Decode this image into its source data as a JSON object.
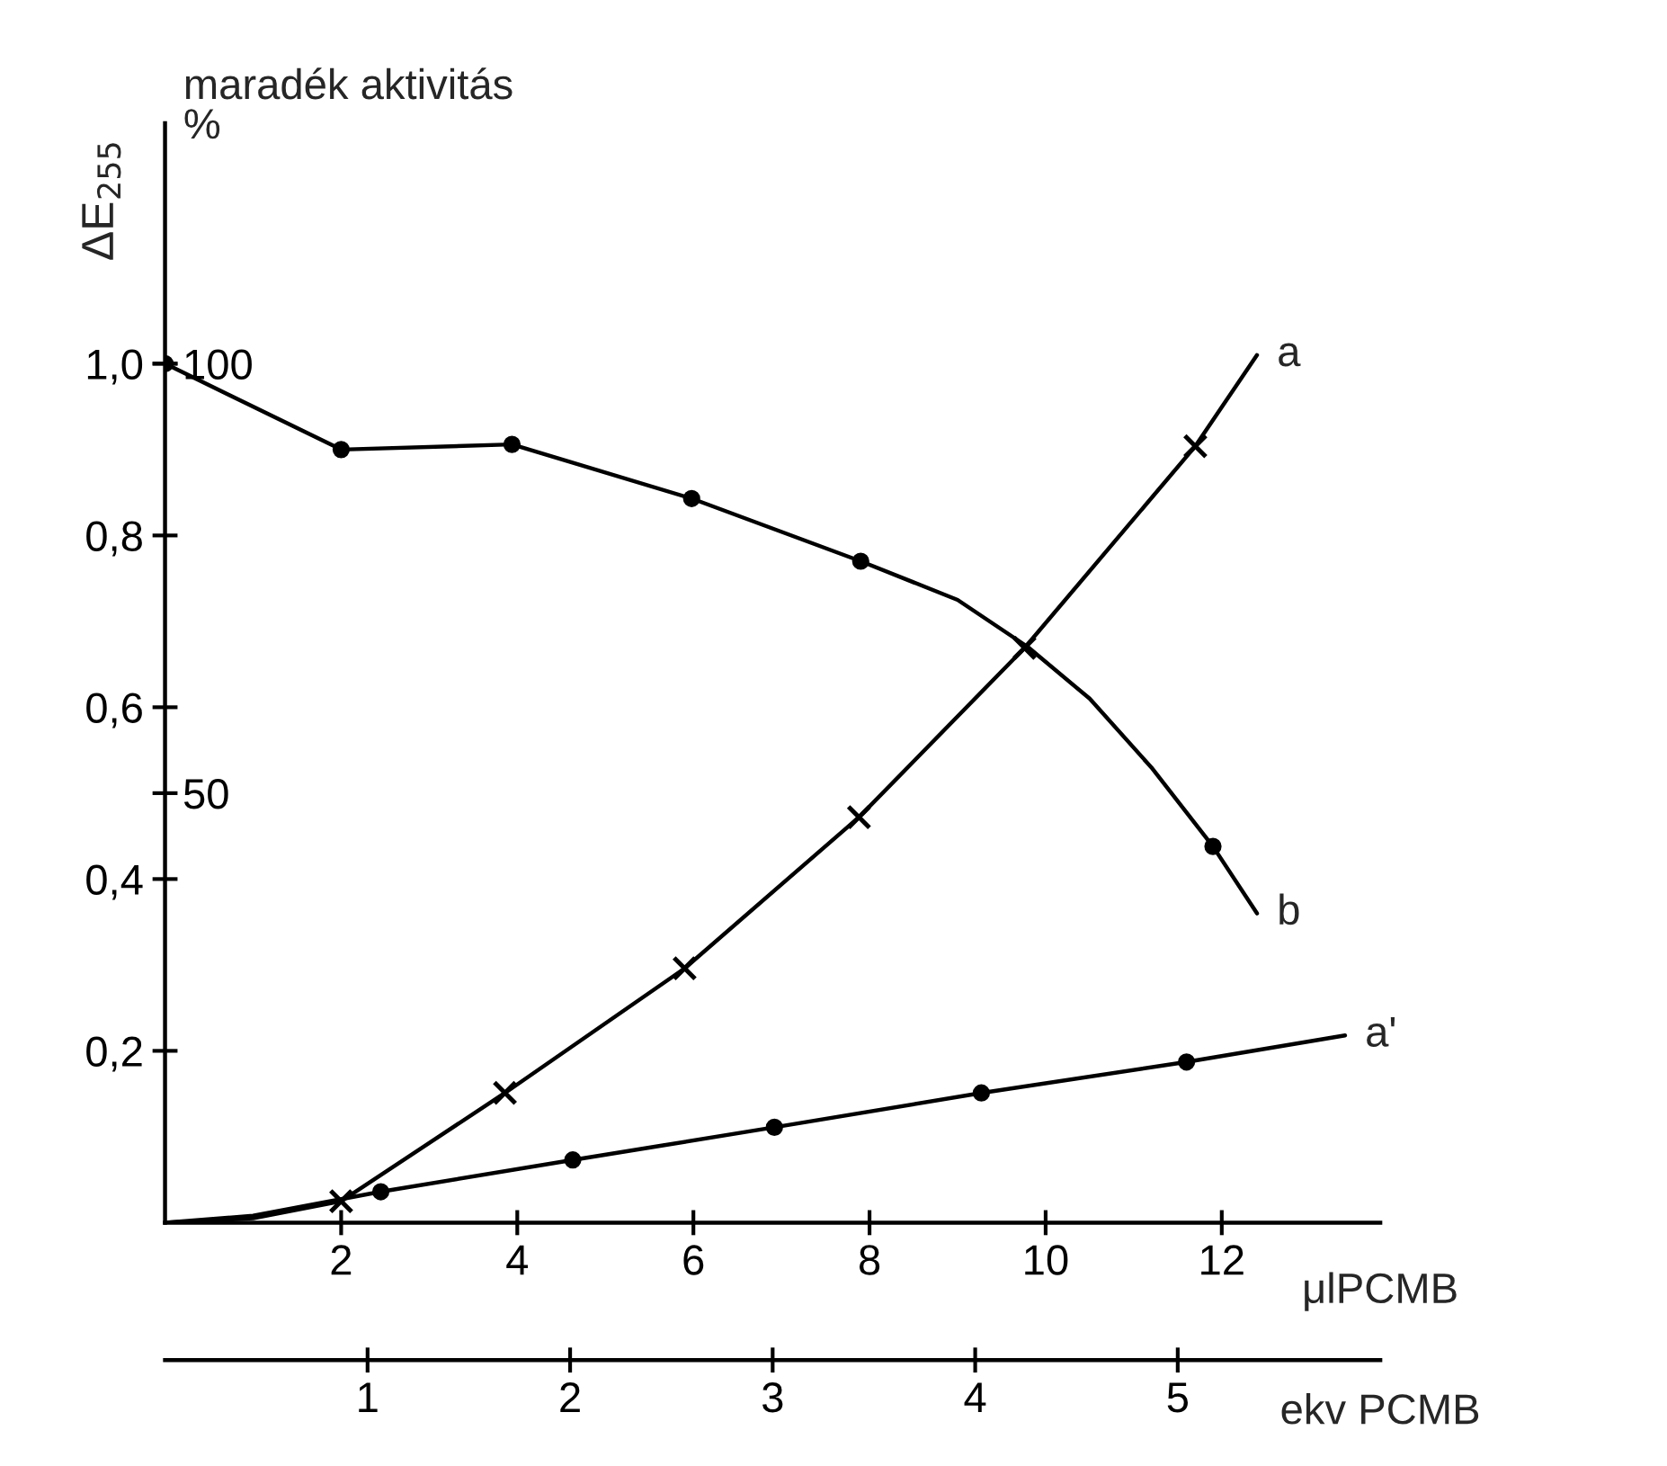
{
  "chart_data": {
    "type": "line",
    "xlabel": "μlPCMB",
    "x2label": "ekv PCMB",
    "ylabel": "ΔE$_{255}$",
    "y2label": "maradék aktivitás\n%",
    "xlim": [
      0,
      13.8
    ],
    "xticks": [
      2,
      4,
      6,
      8,
      10,
      12
    ],
    "x2lim": [
      0,
      6.0
    ],
    "x2ticks": [
      1,
      2,
      3,
      4,
      5
    ],
    "ylim": [
      0,
      1.28
    ],
    "yticks": [
      {
        "value": 0.2,
        "label": "0,2"
      },
      {
        "value": 0.4,
        "label": "0,4"
      },
      {
        "value": 0.6,
        "label": "0,6"
      },
      {
        "value": 0.8,
        "label": "0,8"
      },
      {
        "value": 1.0,
        "label": "1,0"
      }
    ],
    "y2lim": [
      0,
      128
    ],
    "y2ticks": [
      50,
      100
    ],
    "series": [
      {
        "name": "a",
        "color": "#000000",
        "marker": "none",
        "x": [
          0,
          1,
          2,
          3.86,
          5.9,
          7.88,
          9.76,
          11.7,
          12.4
        ],
        "values": [
          0,
          0.005,
          0.025,
          0.151,
          0.296,
          0.472,
          0.669,
          0.904,
          1.01
        ]
      },
      {
        "type": "scatter",
        "color": "#000000",
        "marker": "cross",
        "x": [
          2,
          3.86,
          5.9,
          7.88,
          9.76,
          11.7
        ],
        "values": [
          0.025,
          0.151,
          0.296,
          0.472,
          0.669,
          0.904
        ]
      },
      {
        "name": "b",
        "axis": "y2",
        "color": "#000000",
        "marker": "none",
        "x": [
          0,
          2,
          3.94,
          5.98,
          7.9,
          9,
          9.8,
          10.5,
          11.2,
          11.9,
          12.4
        ],
        "values": [
          100,
          90,
          90.6,
          84.3,
          77,
          72.5,
          67,
          61,
          53,
          43.8,
          36
        ]
      },
      {
        "type": "scatter",
        "axis": "y2",
        "color": "#000000",
        "marker": "circle",
        "x": [
          0,
          2,
          3.94,
          5.98,
          7.9,
          11.9
        ],
        "values": [
          100,
          90,
          90.6,
          84.3,
          77,
          43.8
        ]
      },
      {
        "name": "a'",
        "color": "#000000",
        "marker": "none",
        "x": [
          0,
          1,
          2.45,
          4.63,
          6.92,
          9.27,
          11.6,
          13.4
        ],
        "values": [
          0,
          0.008,
          0.036,
          0.073,
          0.111,
          0.151,
          0.187,
          0.218
        ]
      },
      {
        "type": "scatter",
        "color": "#000000",
        "marker": "circle",
        "x": [
          2.45,
          4.63,
          6.92,
          9.27,
          11.6
        ],
        "values": [
          0.036,
          0.073,
          0.111,
          0.151,
          0.187
        ]
      }
    ]
  }
}
